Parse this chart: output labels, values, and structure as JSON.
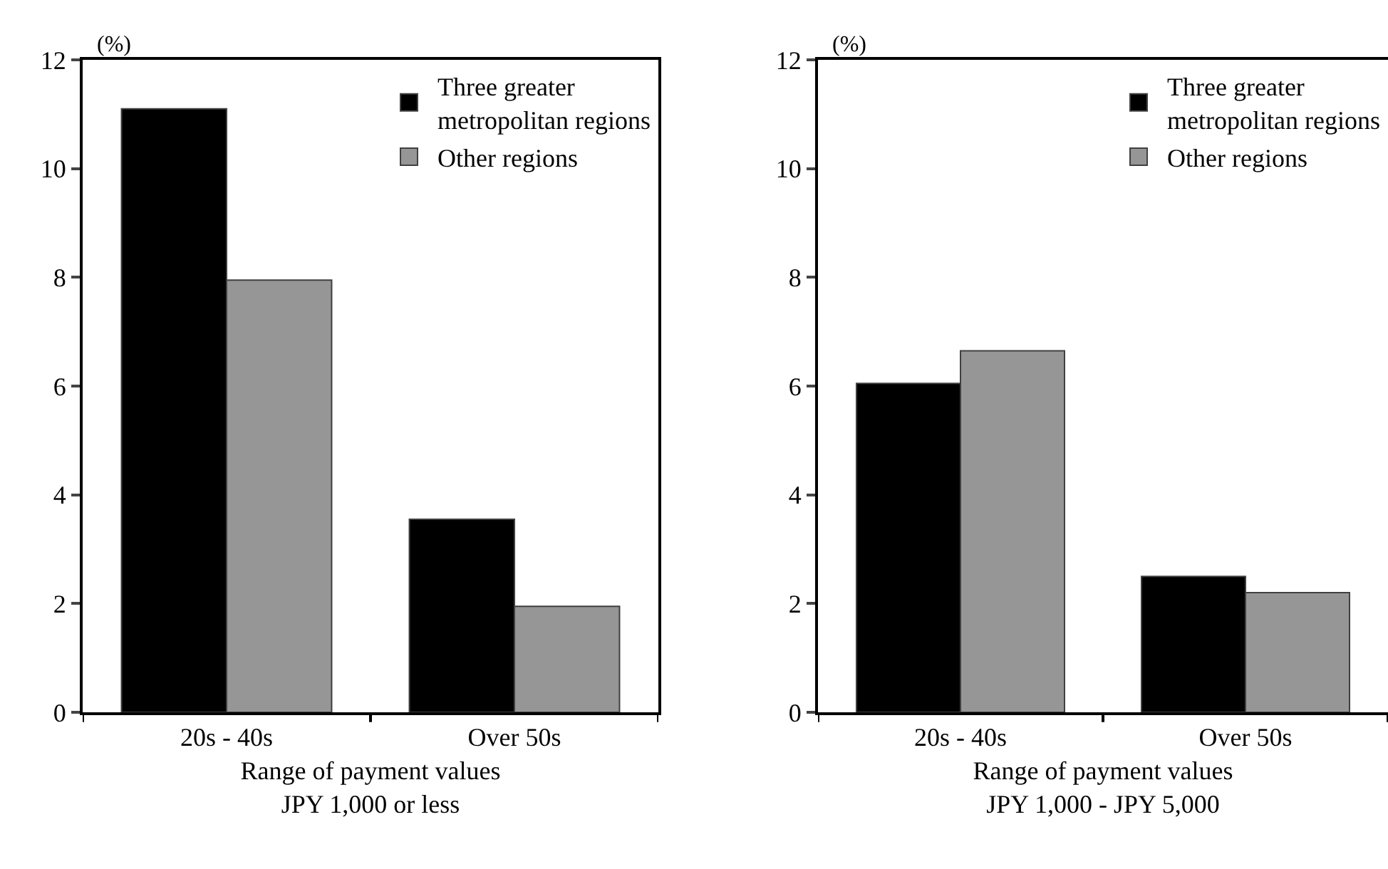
{
  "chart_data": [
    {
      "type": "bar",
      "ylabel": "(%)",
      "xlabel": "Range of payment values\nJPY 1,000 or less",
      "categories": [
        "20s - 40s",
        "Over 50s"
      ],
      "ylim": [
        0,
        12
      ],
      "yticks": [
        0,
        2,
        4,
        6,
        8,
        10,
        12
      ],
      "grid": false,
      "legend": "top right",
      "series": [
        {
          "name": "Three greater\nmetropolitan regions",
          "color": "#000000",
          "values": [
            11.1,
            3.55
          ]
        },
        {
          "name": "Other regions",
          "color": "#969696",
          "values": [
            7.95,
            1.95
          ]
        }
      ]
    },
    {
      "type": "bar",
      "ylabel": "(%)",
      "xlabel": "Range of payment values\nJPY 1,000 - JPY 5,000",
      "categories": [
        "20s - 40s",
        "Over 50s"
      ],
      "ylim": [
        0,
        12
      ],
      "yticks": [
        0,
        2,
        4,
        6,
        8,
        10,
        12
      ],
      "grid": false,
      "legend": "top right",
      "series": [
        {
          "name": "Three greater\nmetropolitan regions",
          "color": "#000000",
          "values": [
            6.05,
            2.5
          ]
        },
        {
          "name": "Other regions",
          "color": "#969696",
          "values": [
            6.65,
            2.2
          ]
        }
      ]
    }
  ]
}
